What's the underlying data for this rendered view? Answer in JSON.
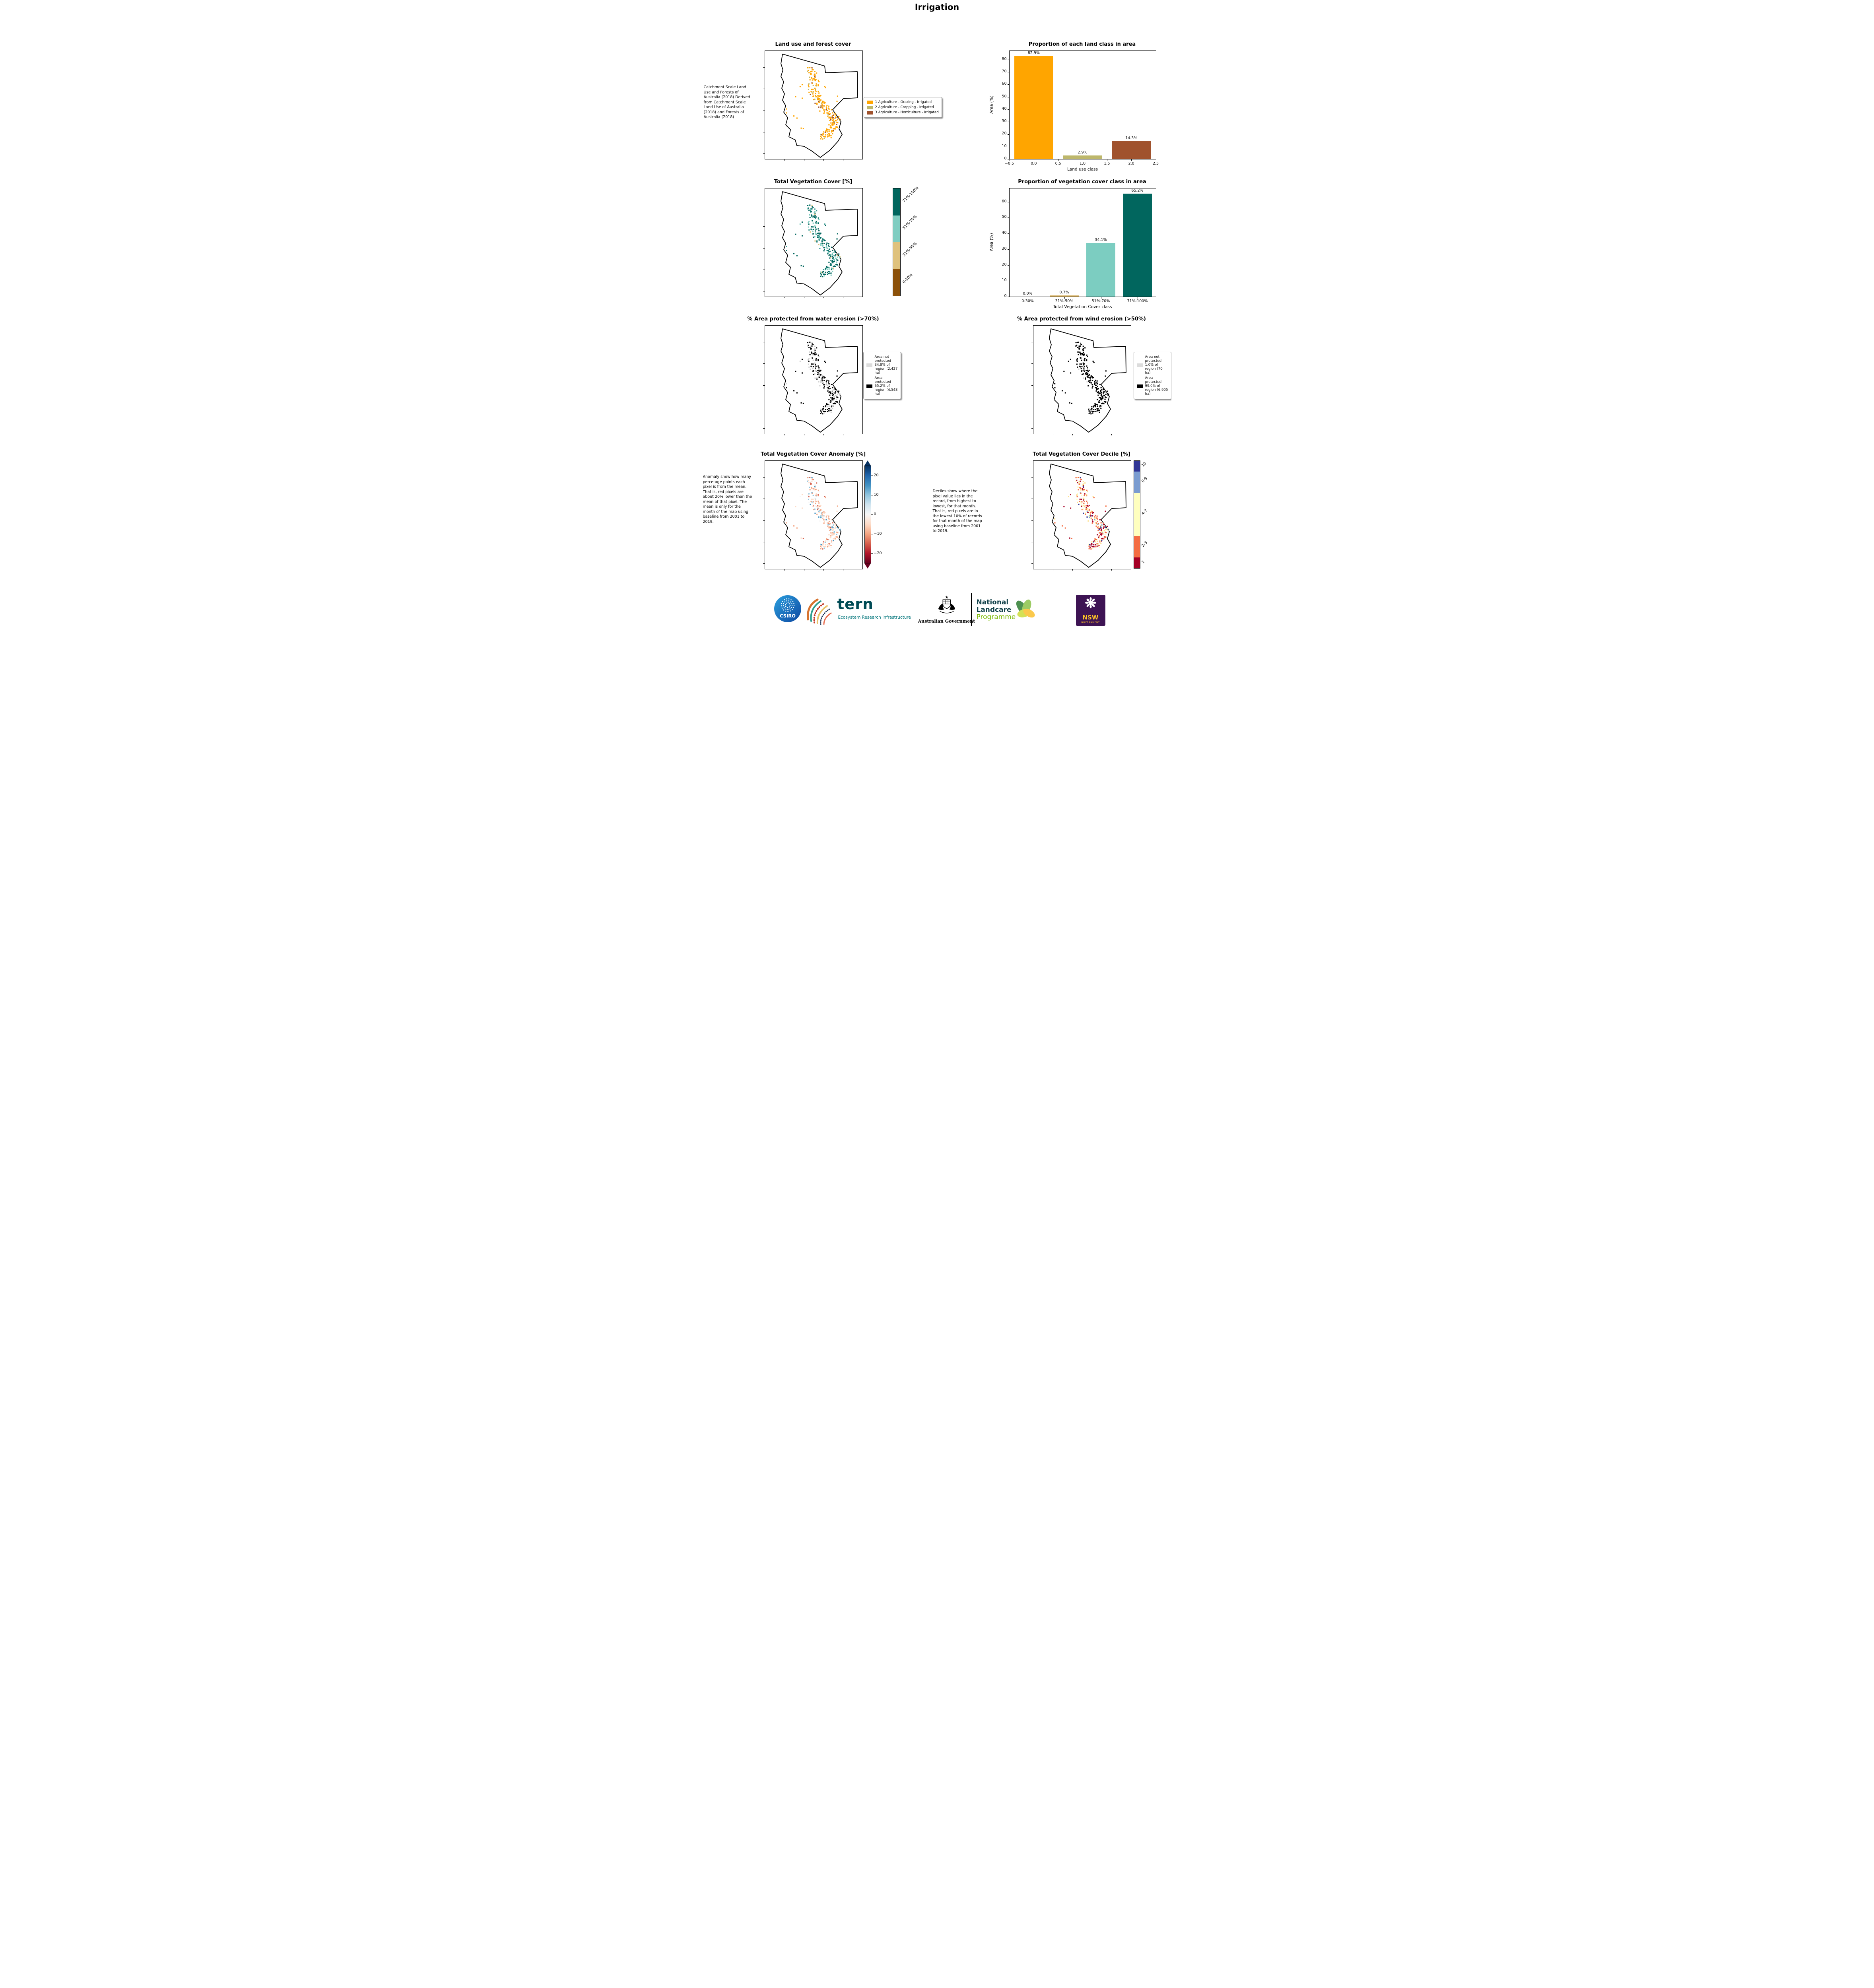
{
  "page": {
    "title": "Irrigation"
  },
  "land_use": {
    "title": "Land use and forest cover",
    "side_text": "Catchment Scale Land Use and Forests of Australia (2018) Derived from Catchment Scale Land Use of Australia (2018) and Forests of Australia (2018)",
    "legend": [
      {
        "label": "1 Agriculture - Grazing - Irrigated",
        "color": "#FFA500"
      },
      {
        "label": "2 Agriculture - Cropping - Irrigated",
        "color": "#BDB76B"
      },
      {
        "label": "3 Agriculture - Horticulture - Irrigated",
        "color": "#A0522D"
      }
    ],
    "pixel_palette": [
      [
        "#FFA500",
        0.8
      ],
      [
        "#BDB76B",
        0.07
      ],
      [
        "#A0522D",
        0.13
      ]
    ]
  },
  "veg_cover": {
    "title": "Total Vegetation Cover [%]",
    "colorbar": [
      {
        "label": "71%-100%",
        "color": "#01665E"
      },
      {
        "label": "51%-70%",
        "color": "#80CDC1"
      },
      {
        "label": "31%-50%",
        "color": "#DFC27D"
      },
      {
        "label": "0-30%",
        "color": "#8C510A"
      }
    ],
    "pixel_palette": [
      [
        "#01665E",
        0.58
      ],
      [
        "#35978F",
        0.12
      ],
      [
        "#80CDC1",
        0.26
      ],
      [
        "#DFC27D",
        0.04
      ]
    ]
  },
  "water_erosion": {
    "title": "% Area protected from water erosion (>70%)",
    "legend": [
      {
        "label": "Area not protected 34.8% of region (2,427 ha)",
        "color": "#DCDCDC"
      },
      {
        "label": "Area protected 65.2% of region (4,548 ha)",
        "color": "#000000"
      }
    ],
    "pixel_palette": [
      [
        "#000000",
        0.65
      ],
      [
        "#D3D3D3",
        0.35
      ]
    ]
  },
  "wind_erosion": {
    "title": "% Area protected from wind erosion (>50%)",
    "legend": [
      {
        "label": "Area not protected 1.0% of region (70 ha)",
        "color": "#DCDCDC"
      },
      {
        "label": "Area protected 99.0% of region (6,905 ha)",
        "color": "#000000"
      }
    ],
    "pixel_palette": [
      [
        "#000000",
        0.97
      ],
      [
        "#D3D3D3",
        0.03
      ]
    ]
  },
  "anomaly": {
    "title": "Total Vegetation Cover Anomaly [%]",
    "side_text": "Anomaly show how many percetage points each pixel is from the mean. That is, red pixels are about 20% lower than the mean of that pixel. The mean is only for the month of the map using baseline from 2001 to 2019.",
    "colorbar_ticks": [
      {
        "value": 20,
        "label": "20"
      },
      {
        "value": 10,
        "label": "10"
      },
      {
        "value": 0,
        "label": "0"
      },
      {
        "value": -10,
        "label": "−10"
      },
      {
        "value": -20,
        "label": "−20"
      }
    ],
    "gradient": [
      "#053061",
      "#2166AC",
      "#4393C3",
      "#92C5DE",
      "#D1E5F0",
      "#F7F7F7",
      "#FDDBC7",
      "#F4A582",
      "#D6604D",
      "#B2182B",
      "#67001F"
    ],
    "arrow_top": "#053061",
    "arrow_bottom": "#67001F",
    "pixel_palette": [
      [
        "#FDDBC7",
        0.3
      ],
      [
        "#F4A582",
        0.25
      ],
      [
        "#D6604D",
        0.1
      ],
      [
        "#F7F7F7",
        0.15
      ],
      [
        "#92C5DE",
        0.12
      ],
      [
        "#4393C3",
        0.08
      ]
    ]
  },
  "decile": {
    "title": "Total Vegetation Cover Decile [%]",
    "side_text": "Deciles show where the pixel value lies in the record, from highest to lowest, for that month. That is, red pixels are in the lowest 10% of records for that month of the map using baseline from 2001 to 2019.",
    "colorbar": [
      {
        "label": "10",
        "color": "#313695",
        "frac": 0.1
      },
      {
        "label": "8-9",
        "color": "#7B9CD0",
        "frac": 0.2
      },
      {
        "label": "4-7",
        "color": "#FFFFBF",
        "frac": 0.4
      },
      {
        "label": "2-3",
        "color": "#F46D43",
        "frac": 0.2
      },
      {
        "label": "1",
        "color": "#A50026",
        "frac": 0.1
      }
    ],
    "pixel_palette": [
      [
        "#A50026",
        0.28
      ],
      [
        "#F46D43",
        0.3
      ],
      [
        "#FEE08B",
        0.18
      ],
      [
        "#FFFFBF",
        0.12
      ],
      [
        "#74ADD1",
        0.07
      ],
      [
        "#313695",
        0.05
      ]
    ]
  },
  "chart_data": [
    {
      "type": "bar",
      "title": "Proportion of each land class in area",
      "xlabel": "Land use class",
      "ylabel": "Area (%)",
      "x": [
        0,
        1,
        2
      ],
      "values": [
        82.9,
        2.9,
        14.3
      ],
      "bar_labels": [
        "82.9%",
        "2.9%",
        "14.3%"
      ],
      "bar_colors": [
        "#FFA500",
        "#BDB76B",
        "#A0522D"
      ],
      "bar_width": 0.8,
      "xlim": [
        -0.5,
        2.5
      ],
      "ylim": [
        0,
        87
      ],
      "xtick_vals": [
        -0.5,
        0,
        0.5,
        1,
        1.5,
        2,
        2.5
      ],
      "xtick_labels": [
        "−0.5",
        "0.0",
        "0.5",
        "1.0",
        "1.5",
        "2.0",
        "2.5"
      ],
      "ytick_vals": [
        0,
        10,
        20,
        30,
        40,
        50,
        60,
        70,
        80
      ],
      "legend_position": "none",
      "grid": false
    },
    {
      "type": "bar",
      "title": "Proportion of vegetation cover class in area",
      "xlabel": "Total Vegetation Cover class",
      "ylabel": "Area (%)",
      "categories": [
        "0-30%",
        "31%-50%",
        "51%-70%",
        "71%-100%"
      ],
      "values": [
        0.0,
        0.7,
        34.1,
        65.2
      ],
      "bar_labels": [
        "0.0%",
        "0.7%",
        "34.1%",
        "65.2%"
      ],
      "bar_colors": [
        "#8C510A",
        "#D8B365",
        "#7CCDC1",
        "#01665E"
      ],
      "bar_width": 0.8,
      "xlim": [
        -0.5,
        3.5
      ],
      "ylim": [
        0,
        68.5
      ],
      "ytick_vals": [
        0,
        10,
        20,
        30,
        40,
        50,
        60
      ],
      "legend_position": "none",
      "grid": false
    }
  ],
  "footer": {
    "csiro_label": "CSIRO",
    "tern_name": "tern",
    "tern_tagline": "Ecosystem Research Infrastructure",
    "aus_gov_label": "Australian Government",
    "landcare_lines": [
      "National",
      "Landcare",
      "Programme"
    ],
    "nsw_label": "NSW",
    "nsw_sublabel": "GOVERNMENT"
  }
}
